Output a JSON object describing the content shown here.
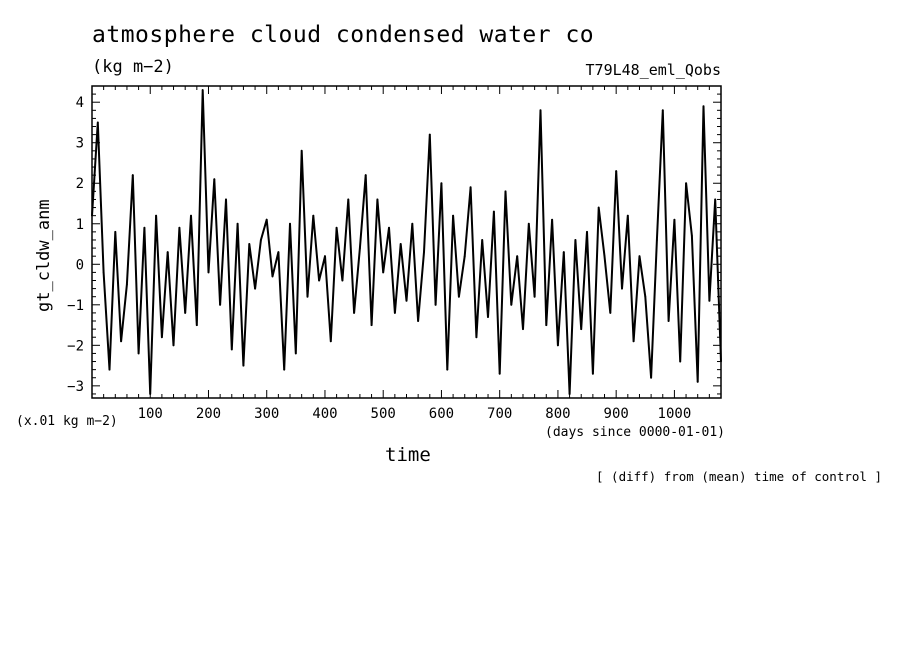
{
  "title": "atmosphere cloud condensed water co",
  "units": "(kg m−2)",
  "experiment_id": "T79L48_eml_Qobs",
  "x_unit_note": "(x.01 kg m−2)",
  "x_axis_unit": "(days since 0000-01-01)",
  "xlabel": "time",
  "ylabel": "gt_cldw_anm",
  "footnote": "[ (diff) from (mean) time of control ]",
  "chart_data": {
    "type": "line",
    "title": "atmosphere cloud condensed water co",
    "xlabel": "time",
    "ylabel": "gt_cldw_anm",
    "xlim": [
      0,
      1080
    ],
    "ylim": [
      -3.3,
      4.4
    ],
    "xticks": [
      100,
      200,
      300,
      400,
      500,
      600,
      700,
      800,
      900,
      1000
    ],
    "yticks": [
      -3,
      -2,
      -1,
      0,
      1,
      2,
      3,
      4
    ],
    "grid": false,
    "series": [
      {
        "x": [
          0,
          10,
          20,
          30,
          40,
          50,
          60,
          70,
          80,
          90,
          100,
          110,
          120,
          130,
          140,
          150,
          160,
          170,
          180,
          190,
          200,
          210,
          220,
          230,
          240,
          250,
          260,
          270,
          280,
          290,
          300,
          310,
          320,
          330,
          340,
          350,
          360,
          370,
          380,
          390,
          400,
          410,
          420,
          430,
          440,
          450,
          460,
          470,
          480,
          490,
          500,
          510,
          520,
          530,
          540,
          550,
          560,
          570,
          580,
          590,
          600,
          610,
          620,
          630,
          640,
          650,
          660,
          670,
          680,
          690,
          700,
          710,
          720,
          730,
          740,
          750,
          760,
          770,
          780,
          790,
          800,
          810,
          820,
          830,
          840,
          850,
          860,
          870,
          880,
          890,
          900,
          910,
          920,
          930,
          940,
          950,
          960,
          970,
          980,
          990,
          1000,
          1010,
          1020,
          1030,
          1040,
          1050,
          1060,
          1070,
          1080
        ],
        "y": [
          1.2,
          3.5,
          -0.2,
          -2.6,
          0.8,
          -1.9,
          -0.5,
          2.2,
          -2.2,
          0.9,
          -3.2,
          1.2,
          -1.8,
          0.3,
          -2.0,
          0.9,
          -1.2,
          1.2,
          -1.5,
          4.3,
          -0.2,
          2.1,
          -1.0,
          1.6,
          -2.1,
          1.0,
          -2.5,
          0.5,
          -0.6,
          0.6,
          1.1,
          -0.3,
          0.3,
          -2.6,
          1.0,
          -2.2,
          2.8,
          -0.8,
          1.2,
          -0.4,
          0.2,
          -1.9,
          0.9,
          -0.4,
          1.6,
          -1.2,
          0.4,
          2.2,
          -1.5,
          1.6,
          -0.2,
          0.9,
          -1.2,
          0.5,
          -0.9,
          1.0,
          -1.4,
          0.3,
          3.2,
          -1.0,
          2.0,
          -2.6,
          1.2,
          -0.8,
          0.2,
          1.9,
          -1.8,
          0.6,
          -1.3,
          1.3,
          -2.7,
          1.8,
          -1.0,
          0.2,
          -1.6,
          1.0,
          -0.8,
          3.8,
          -1.5,
          1.1,
          -2.0,
          0.3,
          -3.2,
          0.6,
          -1.6,
          0.8,
          -2.7,
          1.4,
          0.2,
          -1.2,
          2.3,
          -0.6,
          1.2,
          -1.9,
          0.2,
          -0.8,
          -2.8,
          0.6,
          3.8,
          -1.4,
          1.1,
          -2.4,
          2.0,
          0.7,
          -2.9,
          3.9,
          -0.9,
          1.6,
          -2.4
        ]
      }
    ]
  }
}
